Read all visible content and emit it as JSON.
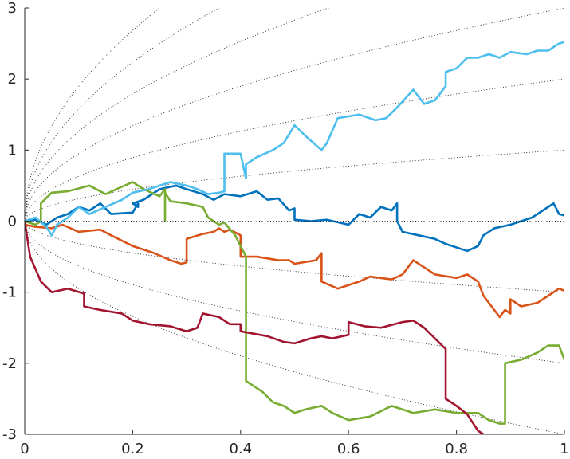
{
  "chart_data": {
    "type": "line",
    "title": "",
    "xlabel": "",
    "ylabel": "",
    "xlim": [
      0,
      1
    ],
    "ylim": [
      -3,
      3
    ],
    "xticks": [
      0,
      0.2,
      0.4,
      0.6,
      0.8,
      1
    ],
    "xtick_labels": [
      "0",
      "0.2",
      "0.4",
      "0.6",
      "0.8",
      "1"
    ],
    "yticks": [
      -3,
      -2,
      -1,
      0,
      1,
      2,
      3
    ],
    "ytick_labels": [
      "-3",
      "-2",
      "-1",
      "0",
      "1",
      "2",
      "3"
    ],
    "grid": false,
    "legend": "none",
    "guide_curves": {
      "style": "dotted",
      "color": "#262626",
      "form": "y = c * sqrt(x)",
      "coefficients": [
        -3,
        -2,
        -1,
        1,
        2,
        3,
        4,
        5,
        6
      ]
    },
    "series": [
      {
        "color": "#0072BD",
        "points": [
          [
            0,
            0
          ],
          [
            0.02,
            0.02
          ],
          [
            0.04,
            -0.05
          ],
          [
            0.06,
            0.05
          ],
          [
            0.08,
            0.1
          ],
          [
            0.1,
            0.2
          ],
          [
            0.12,
            0.15
          ],
          [
            0.14,
            0.25
          ],
          [
            0.16,
            0.1
          ],
          [
            0.2,
            0.12
          ],
          [
            0.21,
            0.25
          ],
          [
            0.21,
            0.2
          ],
          [
            0.2,
            0.25
          ],
          [
            0.22,
            0.3
          ],
          [
            0.25,
            0.45
          ],
          [
            0.28,
            0.5
          ],
          [
            0.3,
            0.45
          ],
          [
            0.33,
            0.38
          ],
          [
            0.35,
            0.3
          ],
          [
            0.37,
            0.38
          ],
          [
            0.4,
            0.35
          ],
          [
            0.43,
            0.42
          ],
          [
            0.45,
            0.3
          ],
          [
            0.47,
            0.32
          ],
          [
            0.49,
            0.15
          ],
          [
            0.5,
            0.18
          ],
          [
            0.5,
            0.02
          ],
          [
            0.53,
            0.0
          ],
          [
            0.56,
            0.02
          ],
          [
            0.6,
            -0.05
          ],
          [
            0.62,
            0.1
          ],
          [
            0.64,
            0.05
          ],
          [
            0.66,
            0.2
          ],
          [
            0.68,
            0.15
          ],
          [
            0.69,
            0.25
          ],
          [
            0.69,
            0.0
          ],
          [
            0.7,
            -0.15
          ],
          [
            0.73,
            -0.2
          ],
          [
            0.76,
            -0.25
          ],
          [
            0.78,
            -0.32
          ],
          [
            0.82,
            -0.42
          ],
          [
            0.84,
            -0.35
          ],
          [
            0.85,
            -0.2
          ],
          [
            0.87,
            -0.1
          ],
          [
            0.9,
            -0.05
          ],
          [
            0.92,
            0.0
          ],
          [
            0.94,
            0.05
          ],
          [
            0.96,
            0.15
          ],
          [
            0.98,
            0.25
          ],
          [
            0.99,
            0.1
          ],
          [
            1,
            0.08
          ]
        ]
      },
      {
        "color": "#D95319",
        "points": [
          [
            0,
            -0.05
          ],
          [
            0.02,
            -0.08
          ],
          [
            0.05,
            -0.1
          ],
          [
            0.07,
            -0.05
          ],
          [
            0.1,
            -0.15
          ],
          [
            0.14,
            -0.12
          ],
          [
            0.16,
            -0.2
          ],
          [
            0.2,
            -0.35
          ],
          [
            0.24,
            -0.45
          ],
          [
            0.27,
            -0.55
          ],
          [
            0.29,
            -0.6
          ],
          [
            0.3,
            -0.58
          ],
          [
            0.3,
            -0.25
          ],
          [
            0.33,
            -0.18
          ],
          [
            0.35,
            -0.15
          ],
          [
            0.36,
            -0.1
          ],
          [
            0.37,
            -0.15
          ],
          [
            0.38,
            -0.12
          ],
          [
            0.4,
            -0.2
          ],
          [
            0.4,
            -0.5
          ],
          [
            0.43,
            -0.5
          ],
          [
            0.47,
            -0.55
          ],
          [
            0.49,
            -0.55
          ],
          [
            0.5,
            -0.6
          ],
          [
            0.54,
            -0.55
          ],
          [
            0.55,
            -0.45
          ],
          [
            0.55,
            -0.85
          ],
          [
            0.58,
            -0.95
          ],
          [
            0.62,
            -0.85
          ],
          [
            0.64,
            -0.78
          ],
          [
            0.68,
            -0.82
          ],
          [
            0.7,
            -0.75
          ],
          [
            0.72,
            -0.55
          ],
          [
            0.74,
            -0.65
          ],
          [
            0.76,
            -0.75
          ],
          [
            0.8,
            -0.8
          ],
          [
            0.82,
            -0.75
          ],
          [
            0.84,
            -0.85
          ],
          [
            0.85,
            -1.05
          ],
          [
            0.87,
            -1.25
          ],
          [
            0.88,
            -1.35
          ],
          [
            0.89,
            -1.25
          ],
          [
            0.9,
            -1.3
          ],
          [
            0.9,
            -1.1
          ],
          [
            0.92,
            -1.2
          ],
          [
            0.95,
            -1.15
          ],
          [
            0.97,
            -1.05
          ],
          [
            0.99,
            -0.95
          ],
          [
            1,
            -0.98
          ]
        ]
      },
      {
        "color": "#77AC30",
        "points": [
          [
            0,
            0
          ],
          [
            0.02,
            -0.05
          ],
          [
            0.03,
            0.0
          ],
          [
            0.03,
            0.25
          ],
          [
            0.05,
            0.4
          ],
          [
            0.08,
            0.42
          ],
          [
            0.12,
            0.5
          ],
          [
            0.15,
            0.38
          ],
          [
            0.17,
            0.45
          ],
          [
            0.2,
            0.55
          ],
          [
            0.22,
            0.45
          ],
          [
            0.25,
            0.35
          ],
          [
            0.26,
            0.45
          ],
          [
            0.26,
            0.0
          ],
          [
            0.26,
            0.4
          ],
          [
            0.27,
            0.28
          ],
          [
            0.3,
            0.25
          ],
          [
            0.33,
            0.2
          ],
          [
            0.34,
            0.05
          ],
          [
            0.36,
            -0.05
          ],
          [
            0.37,
            -0.02
          ],
          [
            0.39,
            -0.2
          ],
          [
            0.41,
            -0.5
          ],
          [
            0.41,
            -2.25
          ],
          [
            0.42,
            -2.3
          ],
          [
            0.44,
            -2.4
          ],
          [
            0.46,
            -2.55
          ],
          [
            0.48,
            -2.6
          ],
          [
            0.5,
            -2.7
          ],
          [
            0.52,
            -2.65
          ],
          [
            0.55,
            -2.6
          ],
          [
            0.57,
            -2.7
          ],
          [
            0.6,
            -2.8
          ],
          [
            0.64,
            -2.75
          ],
          [
            0.68,
            -2.6
          ],
          [
            0.72,
            -2.7
          ],
          [
            0.76,
            -2.65
          ],
          [
            0.8,
            -2.7
          ],
          [
            0.84,
            -2.7
          ],
          [
            0.86,
            -2.8
          ],
          [
            0.88,
            -2.85
          ],
          [
            0.89,
            -2.85
          ],
          [
            0.89,
            -2.0
          ],
          [
            0.92,
            -1.95
          ],
          [
            0.95,
            -1.85
          ],
          [
            0.97,
            -1.75
          ],
          [
            0.99,
            -1.75
          ],
          [
            1,
            -1.95
          ]
        ]
      },
      {
        "color": "#A2142F",
        "points": [
          [
            0,
            0
          ],
          [
            0.01,
            -0.5
          ],
          [
            0.03,
            -0.85
          ],
          [
            0.05,
            -1.0
          ],
          [
            0.08,
            -0.95
          ],
          [
            0.11,
            -1.02
          ],
          [
            0.11,
            -1.2
          ],
          [
            0.14,
            -1.25
          ],
          [
            0.18,
            -1.3
          ],
          [
            0.2,
            -1.4
          ],
          [
            0.23,
            -1.45
          ],
          [
            0.27,
            -1.48
          ],
          [
            0.3,
            -1.55
          ],
          [
            0.32,
            -1.5
          ],
          [
            0.33,
            -1.3
          ],
          [
            0.36,
            -1.35
          ],
          [
            0.38,
            -1.45
          ],
          [
            0.4,
            -1.45
          ],
          [
            0.4,
            -1.55
          ],
          [
            0.45,
            -1.62
          ],
          [
            0.48,
            -1.7
          ],
          [
            0.5,
            -1.72
          ],
          [
            0.53,
            -1.65
          ],
          [
            0.55,
            -1.62
          ],
          [
            0.57,
            -1.65
          ],
          [
            0.6,
            -1.6
          ],
          [
            0.6,
            -1.42
          ],
          [
            0.63,
            -1.48
          ],
          [
            0.66,
            -1.5
          ],
          [
            0.7,
            -1.42
          ],
          [
            0.72,
            -1.4
          ],
          [
            0.74,
            -1.5
          ],
          [
            0.76,
            -1.65
          ],
          [
            0.78,
            -1.8
          ],
          [
            0.78,
            -2.5
          ],
          [
            0.8,
            -2.6
          ],
          [
            0.82,
            -2.72
          ],
          [
            0.84,
            -2.95
          ],
          [
            0.85,
            -3.0
          ]
        ]
      },
      {
        "color": "#4DBEEE",
        "points": [
          [
            0,
            0
          ],
          [
            0.02,
            0.05
          ],
          [
            0.04,
            -0.08
          ],
          [
            0.05,
            -0.2
          ],
          [
            0.06,
            -0.05
          ],
          [
            0.08,
            0.05
          ],
          [
            0.1,
            0.2
          ],
          [
            0.12,
            0.1
          ],
          [
            0.15,
            0.2
          ],
          [
            0.18,
            0.3
          ],
          [
            0.2,
            0.4
          ],
          [
            0.23,
            0.45
          ],
          [
            0.25,
            0.5
          ],
          [
            0.27,
            0.55
          ],
          [
            0.3,
            0.5
          ],
          [
            0.32,
            0.45
          ],
          [
            0.34,
            0.38
          ],
          [
            0.36,
            0.4
          ],
          [
            0.37,
            0.42
          ],
          [
            0.37,
            0.95
          ],
          [
            0.4,
            0.95
          ],
          [
            0.41,
            0.6
          ],
          [
            0.41,
            0.8
          ],
          [
            0.43,
            0.9
          ],
          [
            0.46,
            1.0
          ],
          [
            0.48,
            1.1
          ],
          [
            0.5,
            1.35
          ],
          [
            0.52,
            1.2
          ],
          [
            0.55,
            1.0
          ],
          [
            0.56,
            1.1
          ],
          [
            0.58,
            1.45
          ],
          [
            0.62,
            1.5
          ],
          [
            0.65,
            1.42
          ],
          [
            0.67,
            1.45
          ],
          [
            0.69,
            1.6
          ],
          [
            0.72,
            1.85
          ],
          [
            0.74,
            1.65
          ],
          [
            0.76,
            1.7
          ],
          [
            0.78,
            1.9
          ],
          [
            0.78,
            2.1
          ],
          [
            0.8,
            2.15
          ],
          [
            0.82,
            2.3
          ],
          [
            0.84,
            2.3
          ],
          [
            0.86,
            2.35
          ],
          [
            0.88,
            2.3
          ],
          [
            0.9,
            2.38
          ],
          [
            0.93,
            2.35
          ],
          [
            0.95,
            2.4
          ],
          [
            0.97,
            2.4
          ],
          [
            0.99,
            2.5
          ],
          [
            1,
            2.52
          ]
        ]
      }
    ]
  }
}
